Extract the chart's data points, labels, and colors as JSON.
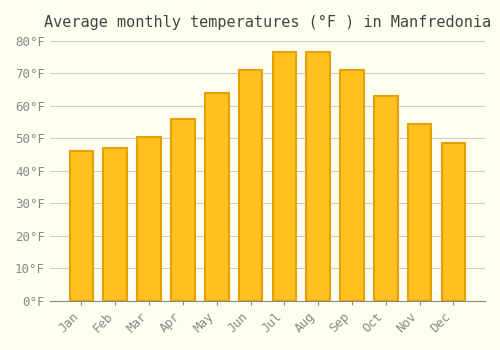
{
  "title": "Average monthly temperatures (°F ) in Manfredonia",
  "months": [
    "Jan",
    "Feb",
    "Mar",
    "Apr",
    "May",
    "Jun",
    "Jul",
    "Aug",
    "Sep",
    "Oct",
    "Nov",
    "Dec"
  ],
  "values": [
    46,
    47,
    50.5,
    56,
    64,
    71,
    76.5,
    76.5,
    71,
    63,
    54.5,
    48.5
  ],
  "bar_color_face": "#FFC020",
  "bar_color_edge": "#E8A000",
  "background_color": "#FFFFF0",
  "grid_color": "#CCCCCC",
  "text_color": "#888888",
  "ylim": [
    0,
    80
  ],
  "yticks": [
    0,
    10,
    20,
    30,
    40,
    50,
    60,
    70,
    80
  ],
  "ytick_labels": [
    "0°F",
    "10°F",
    "20°F",
    "30°F",
    "40°F",
    "50°F",
    "60°F",
    "70°F",
    "80°F"
  ],
  "title_fontsize": 11,
  "tick_fontsize": 9
}
